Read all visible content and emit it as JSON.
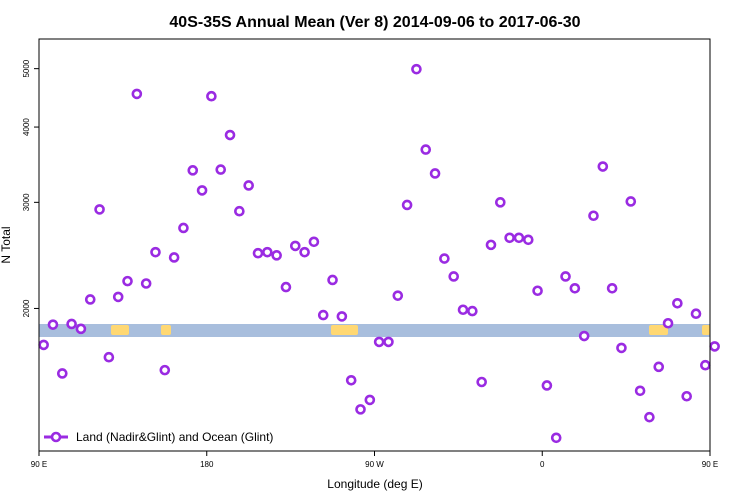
{
  "chart_data": {
    "type": "scatter",
    "title": "40S-35S Annual Mean (Ver 8)   2014-09-06 to 2017-06-30",
    "xlabel": "Longitude (deg E)",
    "ylabel": "N Total",
    "xlim": [
      90,
      450
    ],
    "ylim": [
      1160,
      5600
    ],
    "yscale": "log",
    "x_ticks": [
      {
        "value": 90,
        "label": "90 E"
      },
      {
        "value": 180,
        "label": "180"
      },
      {
        "value": 270,
        "label": "90 W"
      },
      {
        "value": 360,
        "label": "0"
      },
      {
        "value": 450,
        "label": "90 E"
      },
      {
        "value": 540,
        "label": "180"
      }
    ],
    "y_ticks": [
      {
        "value": 2000,
        "label": "2000"
      },
      {
        "value": 3000,
        "label": "3000"
      },
      {
        "value": 4000,
        "label": "4000"
      },
      {
        "value": 5000,
        "label": "5000"
      }
    ],
    "legend": {
      "position": "bottom-left",
      "label": "Land (Nadir&Glint) and Ocean (Glint)"
    },
    "colors": {
      "marker": "#9a2be2",
      "land_band": "#a8bedd",
      "land_patches": "#ffd873"
    },
    "series": [
      {
        "name": "Land (Nadir&Glint) and Ocean (Glint)",
        "points": [
          {
            "x": 92.5,
            "y": 1740
          },
          {
            "x": 97.5,
            "y": 1880
          },
          {
            "x": 102.5,
            "y": 1560
          },
          {
            "x": 107.5,
            "y": 1885
          },
          {
            "x": 112.5,
            "y": 1850
          },
          {
            "x": 117.5,
            "y": 2070
          },
          {
            "x": 122.5,
            "y": 2920
          },
          {
            "x": 127.5,
            "y": 1660
          },
          {
            "x": 132.5,
            "y": 2090
          },
          {
            "x": 137.5,
            "y": 2220
          },
          {
            "x": 142.5,
            "y": 4540
          },
          {
            "x": 147.5,
            "y": 2200
          },
          {
            "x": 152.5,
            "y": 2480
          },
          {
            "x": 157.5,
            "y": 1580
          },
          {
            "x": 162.5,
            "y": 2430
          },
          {
            "x": 167.5,
            "y": 2720
          },
          {
            "x": 172.5,
            "y": 3390
          },
          {
            "x": 177.5,
            "y": 3140
          },
          {
            "x": 182.5,
            "y": 4500
          },
          {
            "x": 187.5,
            "y": 3400
          },
          {
            "x": 192.5,
            "y": 3880
          },
          {
            "x": 197.5,
            "y": 2900
          },
          {
            "x": 202.5,
            "y": 3200
          },
          {
            "x": 207.5,
            "y": 2470
          },
          {
            "x": 212.5,
            "y": 2480
          },
          {
            "x": 217.5,
            "y": 2450
          },
          {
            "x": 222.5,
            "y": 2170
          },
          {
            "x": 227.5,
            "y": 2540
          },
          {
            "x": 232.5,
            "y": 2480
          },
          {
            "x": 237.5,
            "y": 2580
          },
          {
            "x": 242.5,
            "y": 1950
          },
          {
            "x": 247.5,
            "y": 2230
          },
          {
            "x": 252.5,
            "y": 1940
          },
          {
            "x": 257.5,
            "y": 1520
          },
          {
            "x": 262.5,
            "y": 1360
          },
          {
            "x": 267.5,
            "y": 1410
          },
          {
            "x": 272.5,
            "y": 1760
          },
          {
            "x": 277.5,
            "y": 1760
          },
          {
            "x": 282.5,
            "y": 2100
          },
          {
            "x": 287.5,
            "y": 2970
          },
          {
            "x": 292.5,
            "y": 4990
          },
          {
            "x": 297.5,
            "y": 3670
          },
          {
            "x": 302.5,
            "y": 3350
          },
          {
            "x": 307.5,
            "y": 2420
          },
          {
            "x": 312.5,
            "y": 2260
          },
          {
            "x": 317.5,
            "y": 1990
          },
          {
            "x": 322.5,
            "y": 1980
          },
          {
            "x": 327.5,
            "y": 1510
          },
          {
            "x": 332.5,
            "y": 2550
          },
          {
            "x": 337.5,
            "y": 3000
          },
          {
            "x": 342.5,
            "y": 2620
          },
          {
            "x": 347.5,
            "y": 2620
          },
          {
            "x": 352.5,
            "y": 2600
          },
          {
            "x": 357.5,
            "y": 2140
          },
          {
            "x": 362.5,
            "y": 1490
          },
          {
            "x": 367.5,
            "y": 1220
          },
          {
            "x": 372.5,
            "y": 2260
          },
          {
            "x": 377.5,
            "y": 2160
          },
          {
            "x": 382.5,
            "y": 1800
          },
          {
            "x": 387.5,
            "y": 2850
          },
          {
            "x": 392.5,
            "y": 3440
          },
          {
            "x": 397.5,
            "y": 2160
          },
          {
            "x": 402.5,
            "y": 1720
          },
          {
            "x": 407.5,
            "y": 3010
          },
          {
            "x": 412.5,
            "y": 1460
          },
          {
            "x": 417.5,
            "y": 1320
          },
          {
            "x": 422.5,
            "y": 1600
          },
          {
            "x": 427.5,
            "y": 1890
          },
          {
            "x": 432.5,
            "y": 2040
          },
          {
            "x": 437.5,
            "y": 1430
          },
          {
            "x": 442.5,
            "y": 1960
          },
          {
            "x": 447.5,
            "y": 1610
          },
          {
            "x": 452.5,
            "y": 1730
          }
        ]
      }
    ]
  }
}
